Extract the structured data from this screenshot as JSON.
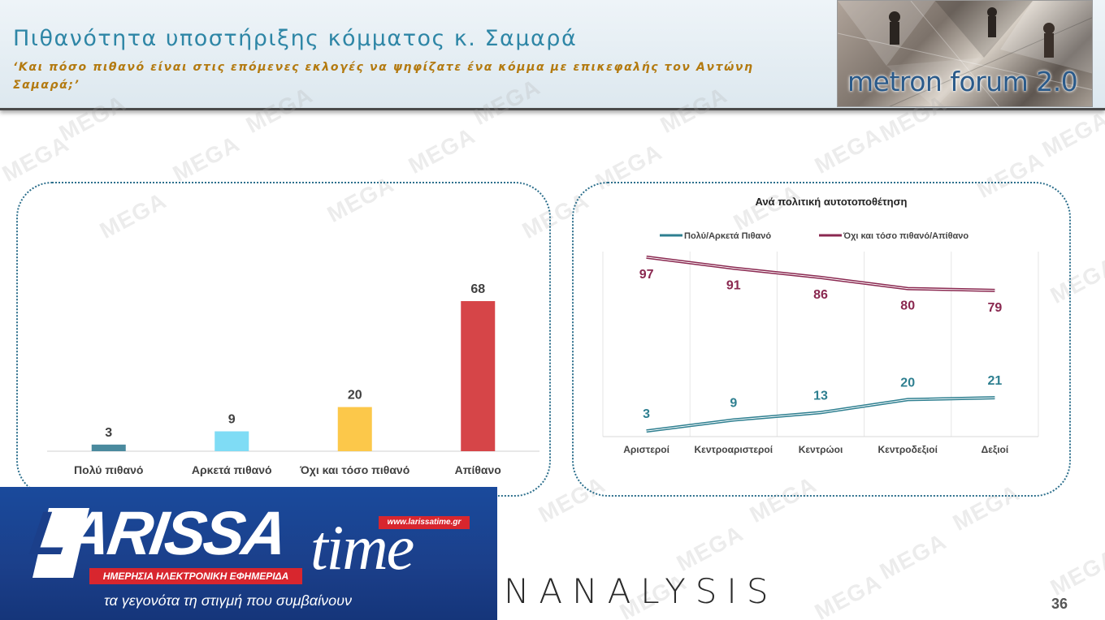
{
  "header": {
    "title": "Πιθανότητα υποστήριξης κόμματος κ. Σαμαρά",
    "subtitle": "‘Και πόσο πιθανό είναι στις επόμενες εκλογές να ψηφίζατε ένα κόμμα με επικεφαλής τον Αντώνη Σαμαρά;’",
    "logo_text": "metron forum 2.0"
  },
  "watermark_text": "MEGA",
  "chart_data": [
    {
      "type": "bar",
      "categories": [
        "Πολύ πιθανό",
        "Αρκετά πιθανό",
        "Όχι και τόσο πιθανό",
        "Απίθανο"
      ],
      "values": [
        3,
        9,
        20,
        68
      ],
      "colors": [
        "#4a8a9e",
        "#7fdcf5",
        "#fcc84a",
        "#d64548"
      ],
      "ylim": [
        0,
        75
      ],
      "grid": false,
      "legend": "none"
    },
    {
      "type": "line",
      "title": "Ανά πολιτική αυτοτοποθέτηση",
      "categories": [
        "Αριστεροί",
        "Κεντροαριστεροί",
        "Κεντρώοι",
        "Κεντροδεξιοί",
        "Δεξιοί"
      ],
      "series": [
        {
          "name": "Πολύ/Αρκετά Πιθανό",
          "values": [
            3,
            9,
            13,
            20,
            21
          ],
          "color": "#2e7f90"
        },
        {
          "name": "Όχι και τόσο πιθανό/Απίθανο",
          "values": [
            97,
            91,
            86,
            80,
            79
          ],
          "color": "#8a2850"
        }
      ],
      "ylim": [
        0,
        100
      ],
      "grid": "vertical",
      "legend": "top"
    }
  ],
  "footer": {
    "banner_brand_left": "ARISSA",
    "banner_brand_letter": "L",
    "banner_brand_right": "time",
    "banner_url": "www.larissatime.gr",
    "banner_tagline": "ΗΜΕΡΗΣΙΑ ΗΛΕΚΤΡΟΝΙΚΗ ΕΦΗΜΕΡΙΔΑ",
    "banner_slogan": "τα γεγονότα τη στιγμή που συμβαίνουν",
    "analysis_text": "NANALYSIS",
    "page_number": "36"
  }
}
